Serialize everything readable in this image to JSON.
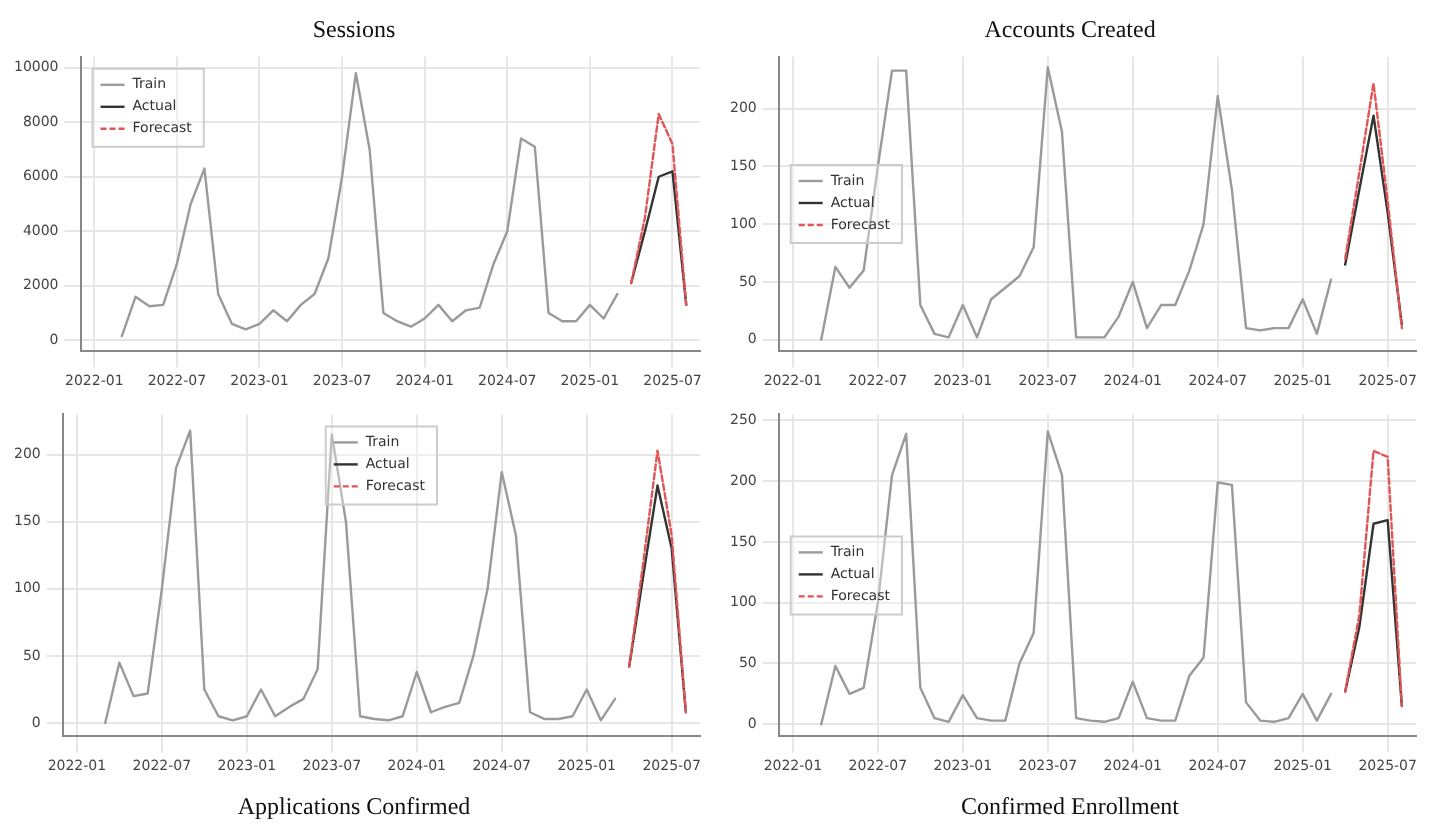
{
  "chart_data": [
    {
      "type": "line",
      "title": "Sessions",
      "x": [
        "2022-03",
        "2022-04",
        "2022-05",
        "2022-06",
        "2022-07",
        "2022-08",
        "2022-09",
        "2022-10",
        "2022-11",
        "2022-12",
        "2023-01",
        "2023-02",
        "2023-03",
        "2023-04",
        "2023-05",
        "2023-06",
        "2023-07",
        "2023-08",
        "2023-09",
        "2023-10",
        "2023-11",
        "2023-12",
        "2024-01",
        "2024-02",
        "2024-03",
        "2024-04",
        "2024-05",
        "2024-06",
        "2024-07",
        "2024-08",
        "2024-09",
        "2024-10",
        "2024-11",
        "2024-12",
        "2025-01",
        "2025-02",
        "2025-03"
      ],
      "series": [
        {
          "name": "Train",
          "color": "#9a9a9a",
          "values": [
            150,
            1600,
            1250,
            1300,
            2800,
            5000,
            6300,
            1700,
            600,
            400,
            600,
            1100,
            700,
            1300,
            1700,
            3000,
            6000,
            9800,
            7000,
            1000,
            700,
            500,
            800,
            1300,
            700,
            1100,
            1200,
            2800,
            4000,
            7400,
            7100,
            1000,
            700,
            700,
            1300,
            800,
            1700
          ]
        },
        {
          "name": "Actual",
          "color": "#333333",
          "x": [
            "2025-04",
            "2025-05",
            "2025-06",
            "2025-07",
            "2025-08"
          ],
          "values": [
            2100,
            4000,
            6000,
            6200,
            1300
          ]
        },
        {
          "name": "Forecast",
          "color": "#e05555",
          "line_style": "dashed",
          "x": [
            "2025-04",
            "2025-05",
            "2025-06",
            "2025-07",
            "2025-08"
          ],
          "values": [
            2100,
            4500,
            8300,
            7200,
            1300
          ]
        }
      ],
      "xlim": [
        "2021-12",
        "2025-09"
      ],
      "xticks": [
        "2022-01",
        "2022-07",
        "2023-01",
        "2023-07",
        "2024-01",
        "2024-07",
        "2025-01",
        "2025-07"
      ],
      "ylim": [
        -400,
        10400
      ],
      "yticks": [
        0,
        2000,
        4000,
        6000,
        8000,
        10000
      ],
      "grid": true,
      "legend": "top left"
    },
    {
      "type": "line",
      "title": "Accounts Created",
      "x": [
        "2022-03",
        "2022-04",
        "2022-05",
        "2022-06",
        "2022-07",
        "2022-08",
        "2022-09",
        "2022-10",
        "2022-11",
        "2022-12",
        "2023-01",
        "2023-02",
        "2023-03",
        "2023-04",
        "2023-05",
        "2023-06",
        "2023-07",
        "2023-08",
        "2023-09",
        "2023-10",
        "2023-11",
        "2023-12",
        "2024-01",
        "2024-02",
        "2024-03",
        "2024-04",
        "2024-05",
        "2024-06",
        "2024-07",
        "2024-08",
        "2024-09",
        "2024-10",
        "2024-11",
        "2024-12",
        "2025-01",
        "2025-02",
        "2025-03"
      ],
      "series": [
        {
          "name": "Train",
          "color": "#9a9a9a",
          "values": [
            0,
            63,
            45,
            60,
            150,
            233,
            233,
            30,
            5,
            2,
            30,
            2,
            35,
            45,
            55,
            80,
            236,
            180,
            2,
            2,
            2,
            20,
            50,
            10,
            30,
            30,
            60,
            100,
            211,
            130,
            10,
            8,
            10,
            10,
            35,
            5,
            52
          ]
        },
        {
          "name": "Actual",
          "color": "#333333",
          "x": [
            "2025-04",
            "2025-05",
            "2025-06",
            "2025-07",
            "2025-08"
          ],
          "values": [
            65,
            130,
            194,
            110,
            13
          ]
        },
        {
          "name": "Forecast",
          "color": "#e05555",
          "line_style": "dashed",
          "x": [
            "2025-04",
            "2025-05",
            "2025-06",
            "2025-07",
            "2025-08"
          ],
          "values": [
            70,
            145,
            222,
            120,
            10
          ]
        }
      ],
      "xlim": [
        "2021-12",
        "2025-09"
      ],
      "xticks": [
        "2022-01",
        "2022-07",
        "2023-01",
        "2023-07",
        "2024-01",
        "2024-07",
        "2025-01",
        "2025-07"
      ],
      "ylim": [
        -10,
        245
      ],
      "yticks": [
        0,
        50,
        100,
        150,
        200
      ],
      "grid": true,
      "legend": "left"
    },
    {
      "type": "line",
      "title": "Applications Confirmed",
      "x": [
        "2022-03",
        "2022-04",
        "2022-05",
        "2022-06",
        "2022-07",
        "2022-08",
        "2022-09",
        "2022-10",
        "2022-11",
        "2022-12",
        "2023-01",
        "2023-02",
        "2023-03",
        "2023-04",
        "2023-05",
        "2023-06",
        "2023-07",
        "2023-08",
        "2023-09",
        "2023-10",
        "2023-11",
        "2023-12",
        "2024-01",
        "2024-02",
        "2024-03",
        "2024-04",
        "2024-05",
        "2024-06",
        "2024-07",
        "2024-08",
        "2024-09",
        "2024-10",
        "2024-11",
        "2024-12",
        "2025-01",
        "2025-02",
        "2025-03"
      ],
      "series": [
        {
          "name": "Train",
          "color": "#9a9a9a",
          "values": [
            0,
            45,
            20,
            22,
            100,
            190,
            218,
            25,
            5,
            2,
            5,
            25,
            5,
            12,
            18,
            40,
            215,
            150,
            5,
            3,
            2,
            5,
            38,
            8,
            12,
            15,
            50,
            100,
            187,
            140,
            8,
            3,
            3,
            5,
            25,
            2,
            18
          ]
        },
        {
          "name": "Actual",
          "color": "#333333",
          "x": [
            "2025-04",
            "2025-05",
            "2025-06",
            "2025-07",
            "2025-08"
          ],
          "values": [
            42,
            110,
            177,
            130,
            8
          ]
        },
        {
          "name": "Forecast",
          "color": "#e05555",
          "line_style": "dashed",
          "x": [
            "2025-04",
            "2025-05",
            "2025-06",
            "2025-07",
            "2025-08"
          ],
          "values": [
            42,
            120,
            203,
            140,
            8
          ]
        }
      ],
      "xlim": [
        "2021-12",
        "2025-09"
      ],
      "xticks": [
        "2022-01",
        "2022-07",
        "2023-01",
        "2023-07",
        "2024-01",
        "2024-07",
        "2025-01",
        "2025-07"
      ],
      "ylim": [
        -10,
        230
      ],
      "yticks": [
        0,
        50,
        100,
        150,
        200
      ],
      "grid": true,
      "legend": "top"
    },
    {
      "type": "line",
      "title": "Confirmed Enrollment",
      "x": [
        "2022-03",
        "2022-04",
        "2022-05",
        "2022-06",
        "2022-07",
        "2022-08",
        "2022-09",
        "2022-10",
        "2022-11",
        "2022-12",
        "2023-01",
        "2023-02",
        "2023-03",
        "2023-04",
        "2023-05",
        "2023-06",
        "2023-07",
        "2023-08",
        "2023-09",
        "2023-10",
        "2023-11",
        "2023-12",
        "2024-01",
        "2024-02",
        "2024-03",
        "2024-04",
        "2024-05",
        "2024-06",
        "2024-07",
        "2024-08",
        "2024-09",
        "2024-10",
        "2024-11",
        "2024-12",
        "2025-01",
        "2025-02",
        "2025-03"
      ],
      "series": [
        {
          "name": "Train",
          "color": "#9a9a9a",
          "values": [
            0,
            48,
            25,
            30,
            100,
            205,
            239,
            30,
            5,
            2,
            24,
            5,
            3,
            3,
            50,
            75,
            241,
            205,
            5,
            3,
            2,
            5,
            35,
            5,
            3,
            3,
            40,
            55,
            199,
            197,
            18,
            3,
            2,
            5,
            25,
            3,
            25
          ]
        },
        {
          "name": "Actual",
          "color": "#333333",
          "x": [
            "2025-04",
            "2025-05",
            "2025-06",
            "2025-07",
            "2025-08"
          ],
          "values": [
            27,
            80,
            165,
            168,
            15
          ]
        },
        {
          "name": "Forecast",
          "color": "#e05555",
          "line_style": "dashed",
          "x": [
            "2025-04",
            "2025-05",
            "2025-06",
            "2025-07",
            "2025-08"
          ],
          "values": [
            27,
            90,
            225,
            220,
            15
          ]
        }
      ],
      "xlim": [
        "2021-12",
        "2025-09"
      ],
      "xticks": [
        "2022-01",
        "2022-07",
        "2023-01",
        "2023-07",
        "2024-01",
        "2024-07",
        "2025-01",
        "2025-07"
      ],
      "ylim": [
        -10,
        255
      ],
      "yticks": [
        0,
        50,
        100,
        150,
        200,
        250
      ],
      "grid": true,
      "legend": "left"
    }
  ]
}
